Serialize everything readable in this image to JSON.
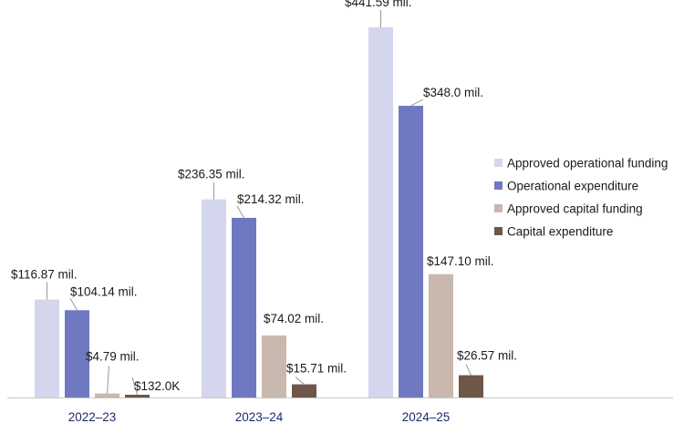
{
  "chart_data": {
    "type": "bar",
    "categories": [
      "2022–23",
      "2023–24",
      "2024–25"
    ],
    "series": [
      {
        "name": "Approved operational funding",
        "color": "#d4d6ee",
        "values": [
          116.87,
          236.35,
          441.59
        ],
        "labels": [
          "$116.87 mil.",
          "$236.35 mil.",
          "$441.59 mil."
        ]
      },
      {
        "name": "Operational expenditure",
        "color": "#7078c2",
        "values": [
          104.14,
          214.32,
          348.0
        ],
        "labels": [
          "$104.14 mil.",
          "$214.32 mil.",
          "$348.0 mil."
        ]
      },
      {
        "name": "Approved capital funding",
        "color": "#c9b8ae",
        "values": [
          4.79,
          74.02,
          147.1
        ],
        "labels": [
          "$4.79 mil.",
          "$74.02 mil.",
          "$147.10 mil."
        ]
      },
      {
        "name": "Capital expenditure",
        "color": "#6e5648",
        "values": [
          0.132,
          15.71,
          26.57
        ],
        "labels": [
          "$132.0K",
          "$15.71 mil.",
          "$26.57 mil."
        ]
      }
    ],
    "ylim": [
      0,
      441.59
    ],
    "grid": false,
    "legend": "right"
  }
}
